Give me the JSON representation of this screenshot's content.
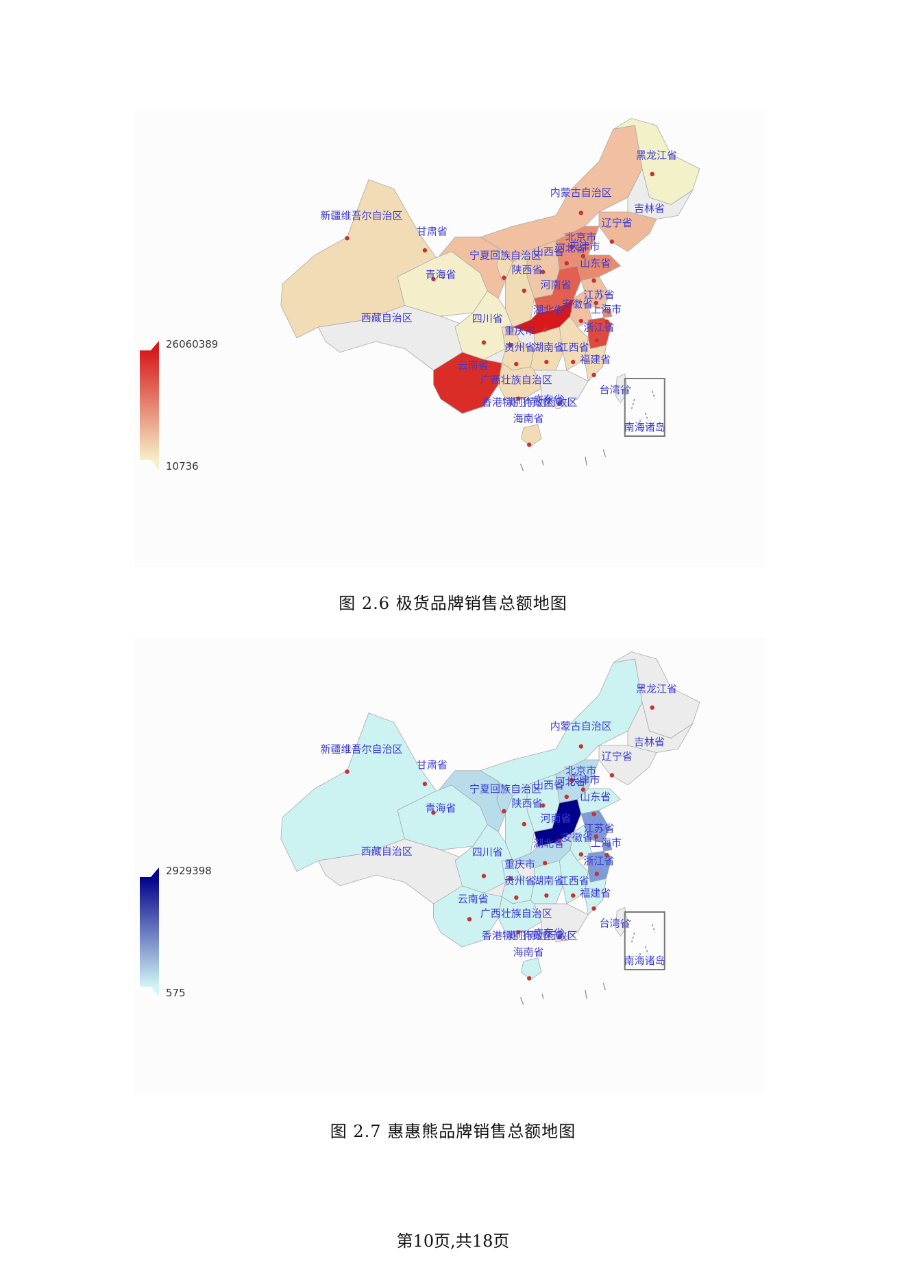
{
  "figures": [
    {
      "caption": "图 2.6  极货品牌销售总额地图",
      "legend": {
        "max": "26060389",
        "min": "10736",
        "color_max": "#d7191c",
        "color_min": "#f5f0c8"
      },
      "inset_label": "南海诸岛",
      "provinces": [
        {
          "name": "黑龙江省",
          "color": "#f2f1c9"
        },
        {
          "name": "吉林省",
          "color": "#ececec"
        },
        {
          "name": "辽宁省",
          "color": "#eeb899"
        },
        {
          "name": "内蒙古自治区",
          "color": "#f0c0a0"
        },
        {
          "name": "新疆维吾尔自治区",
          "color": "#f2dcb5"
        },
        {
          "name": "甘肃省",
          "color": "#f0c0a0"
        },
        {
          "name": "宁夏回族自治区",
          "color": "#f2dcb5"
        },
        {
          "name": "山西省",
          "color": "#eec7a8"
        },
        {
          "name": "北京市",
          "color": "#e88a70"
        },
        {
          "name": "天津市",
          "color": "#e88a70"
        },
        {
          "name": "河北省",
          "color": "#e98d73"
        },
        {
          "name": "山东省",
          "color": "#e88a70"
        },
        {
          "name": "陕西省",
          "color": "#f2dcb5"
        },
        {
          "name": "青海省",
          "color": "#f4efca"
        },
        {
          "name": "西藏自治区",
          "color": "#ececec"
        },
        {
          "name": "四川省",
          "color": "#f4efca"
        },
        {
          "name": "重庆市",
          "color": "#f2dcb5"
        },
        {
          "name": "河南省",
          "color": "#e3604f"
        },
        {
          "name": "湖北省",
          "color": "#d7191c"
        },
        {
          "name": "安徽省",
          "color": "#f0c0a0"
        },
        {
          "name": "江苏省",
          "color": "#f0c0a0"
        },
        {
          "name": "上海市",
          "color": "#e88a70"
        },
        {
          "name": "浙江省",
          "color": "#e04a3e"
        },
        {
          "name": "湖南省",
          "color": "#f2dcb5"
        },
        {
          "name": "江西省",
          "color": "#f2dcb5"
        },
        {
          "name": "福建省",
          "color": "#f2dcb5"
        },
        {
          "name": "贵州省",
          "color": "#f2dcb5"
        },
        {
          "name": "云南省",
          "color": "#db2d28"
        },
        {
          "name": "广西壮族自治区",
          "color": "#f2dcb5"
        },
        {
          "name": "广东省",
          "color": "#ececec"
        },
        {
          "name": "香港特别行政区",
          "color": "#ececec"
        },
        {
          "name": "澳门特别行政区",
          "color": "#ececec"
        },
        {
          "name": "海南省",
          "color": "#f2dcb5"
        },
        {
          "name": "台湾省",
          "color": "#ececec"
        }
      ]
    },
    {
      "caption": "图 2.7  惠惠熊品牌销售总额地图",
      "legend": {
        "max": "2929398",
        "min": "575",
        "color_max": "#00008b",
        "color_min": "#d2f5f5"
      },
      "inset_label": "南海诸岛",
      "provinces": [
        {
          "name": "黑龙江省",
          "color": "#ececec"
        },
        {
          "name": "吉林省",
          "color": "#ececec"
        },
        {
          "name": "辽宁省",
          "color": "#ececec"
        },
        {
          "name": "内蒙古自治区",
          "color": "#cdf2f2"
        },
        {
          "name": "新疆维吾尔自治区",
          "color": "#cdf2f2"
        },
        {
          "name": "甘肃省",
          "color": "#b8dcea"
        },
        {
          "name": "宁夏回族自治区",
          "color": "#b8dcea"
        },
        {
          "name": "山西省",
          "color": "#cdf2f2"
        },
        {
          "name": "北京市",
          "color": "#b8dcea"
        },
        {
          "name": "天津市",
          "color": "#b8dcea"
        },
        {
          "name": "河北省",
          "color": "#b8dcea"
        },
        {
          "name": "山东省",
          "color": "#cdf2f2"
        },
        {
          "name": "陕西省",
          "color": "#cdf2f2"
        },
        {
          "name": "青海省",
          "color": "#cdf2f2"
        },
        {
          "name": "西藏自治区",
          "color": "#ececec"
        },
        {
          "name": "四川省",
          "color": "#cdf2f2"
        },
        {
          "name": "重庆市",
          "color": "#cdf2f2"
        },
        {
          "name": "河南省",
          "color": "#00008b"
        },
        {
          "name": "湖北省",
          "color": "#b8dcea"
        },
        {
          "name": "安徽省",
          "color": "#cdf2f2"
        },
        {
          "name": "江苏省",
          "color": "#7f9ad8"
        },
        {
          "name": "上海市",
          "color": "#7f9ad8"
        },
        {
          "name": "浙江省",
          "color": "#7f9ad8"
        },
        {
          "name": "湖南省",
          "color": "#cdf2f2"
        },
        {
          "name": "江西省",
          "color": "#cdf2f2"
        },
        {
          "name": "福建省",
          "color": "#cdf2f2"
        },
        {
          "name": "贵州省",
          "color": "#cdf2f2"
        },
        {
          "name": "云南省",
          "color": "#cdf2f2"
        },
        {
          "name": "广西壮族自治区",
          "color": "#cdf2f2"
        },
        {
          "name": "广东省",
          "color": "#ececec"
        },
        {
          "name": "香港特别行政区",
          "color": "#ececec"
        },
        {
          "name": "澳门特别行政区",
          "color": "#ececec"
        },
        {
          "name": "海南省",
          "color": "#cdf2f2"
        },
        {
          "name": "台湾省",
          "color": "#ececec"
        }
      ]
    }
  ],
  "footer": "第10页,共18页"
}
